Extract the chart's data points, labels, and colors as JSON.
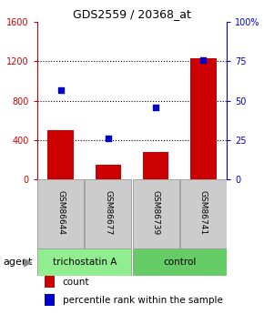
{
  "title": "GDS2559 / 20368_at",
  "samples": [
    "GSM86644",
    "GSM86677",
    "GSM86739",
    "GSM86741"
  ],
  "counts": [
    500,
    150,
    280,
    1230
  ],
  "percentiles": [
    57,
    26,
    46,
    76
  ],
  "ylim_left": [
    0,
    1600
  ],
  "ylim_right": [
    0,
    100
  ],
  "yticks_left": [
    0,
    400,
    800,
    1200,
    1600
  ],
  "yticks_right": [
    0,
    25,
    50,
    75,
    100
  ],
  "ytick_labels_right": [
    "0",
    "25",
    "50",
    "75",
    "100%"
  ],
  "bar_color": "#cc0000",
  "dot_color": "#0000cc",
  "bar_width": 0.55,
  "groups": [
    {
      "label": "trichostatin A",
      "samples": [
        0,
        1
      ],
      "color": "#90ee90"
    },
    {
      "label": "control",
      "samples": [
        2,
        3
      ],
      "color": "#66cc66"
    }
  ],
  "agent_label": "agent",
  "legend_count_label": "count",
  "legend_percentile_label": "percentile rank within the sample",
  "left_tick_color": "#cc0000",
  "right_tick_color": "#0000cc",
  "title_color": "#000000",
  "xtick_box_color": "#cccccc",
  "xtick_box_edge": "#888888"
}
